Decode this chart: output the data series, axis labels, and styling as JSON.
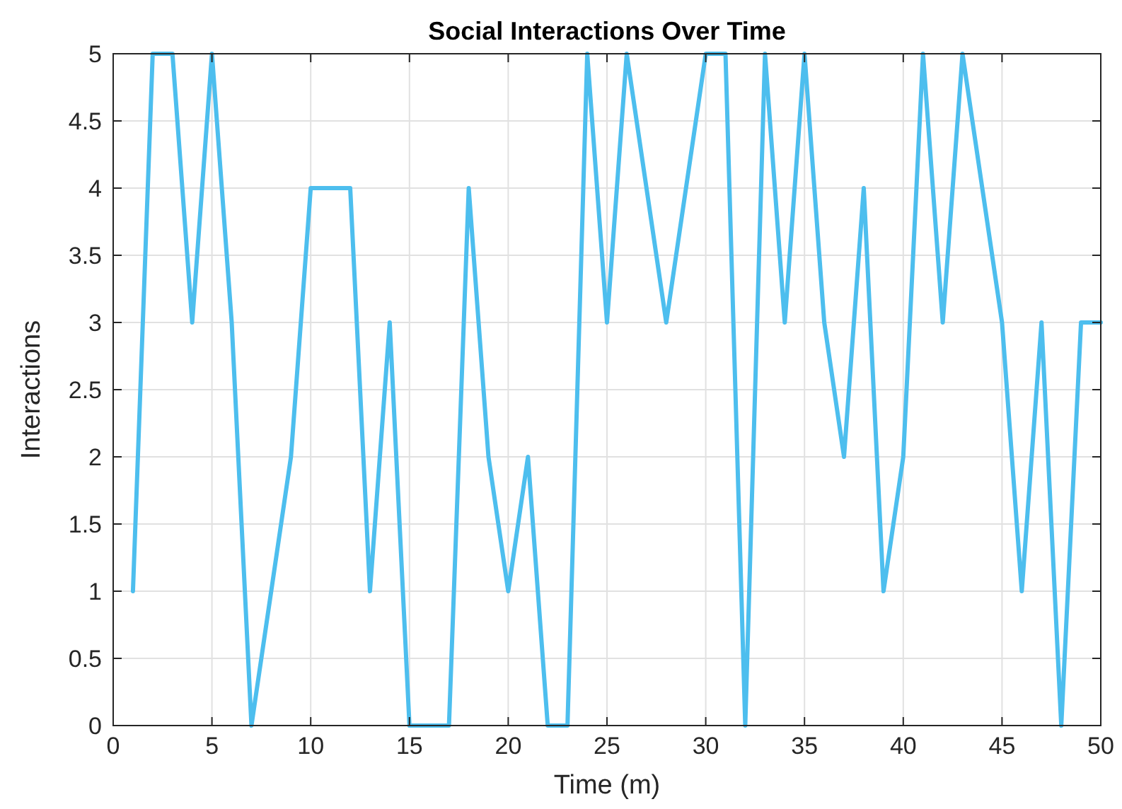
{
  "chart_data": {
    "type": "line",
    "title": "Social Interactions Over Time",
    "xlabel": "Time (m)",
    "ylabel": "Interactions",
    "x": [
      1,
      2,
      3,
      4,
      5,
      6,
      7,
      8,
      9,
      10,
      11,
      12,
      13,
      14,
      15,
      16,
      17,
      18,
      19,
      20,
      21,
      22,
      23,
      24,
      25,
      26,
      27,
      28,
      29,
      30,
      31,
      32,
      33,
      34,
      35,
      36,
      37,
      38,
      39,
      40,
      41,
      42,
      43,
      44,
      45,
      46,
      47,
      48,
      49,
      50
    ],
    "series": [
      {
        "color": "#4dbeee",
        "values": [
          1,
          5,
          5,
          3,
          5,
          3,
          0,
          1,
          2,
          4,
          4,
          4,
          1,
          3,
          0,
          0,
          0,
          4,
          2,
          1,
          2,
          0,
          0,
          5,
          3,
          5,
          4,
          3,
          4,
          5,
          5,
          0,
          5,
          3,
          5,
          3,
          2,
          4,
          1,
          2,
          5,
          3,
          5,
          4,
          3,
          1,
          3,
          0,
          3,
          3
        ]
      }
    ],
    "xlim": [
      0,
      50
    ],
    "xticks": [
      0,
      5,
      10,
      15,
      20,
      25,
      30,
      35,
      40,
      45,
      50
    ],
    "ylim": [
      0,
      5
    ],
    "yticks": [
      0,
      0.5,
      1,
      1.5,
      2,
      2.5,
      3,
      3.5,
      4,
      4.5,
      5
    ],
    "grid": true,
    "marker": "none",
    "line_style": "solid"
  }
}
